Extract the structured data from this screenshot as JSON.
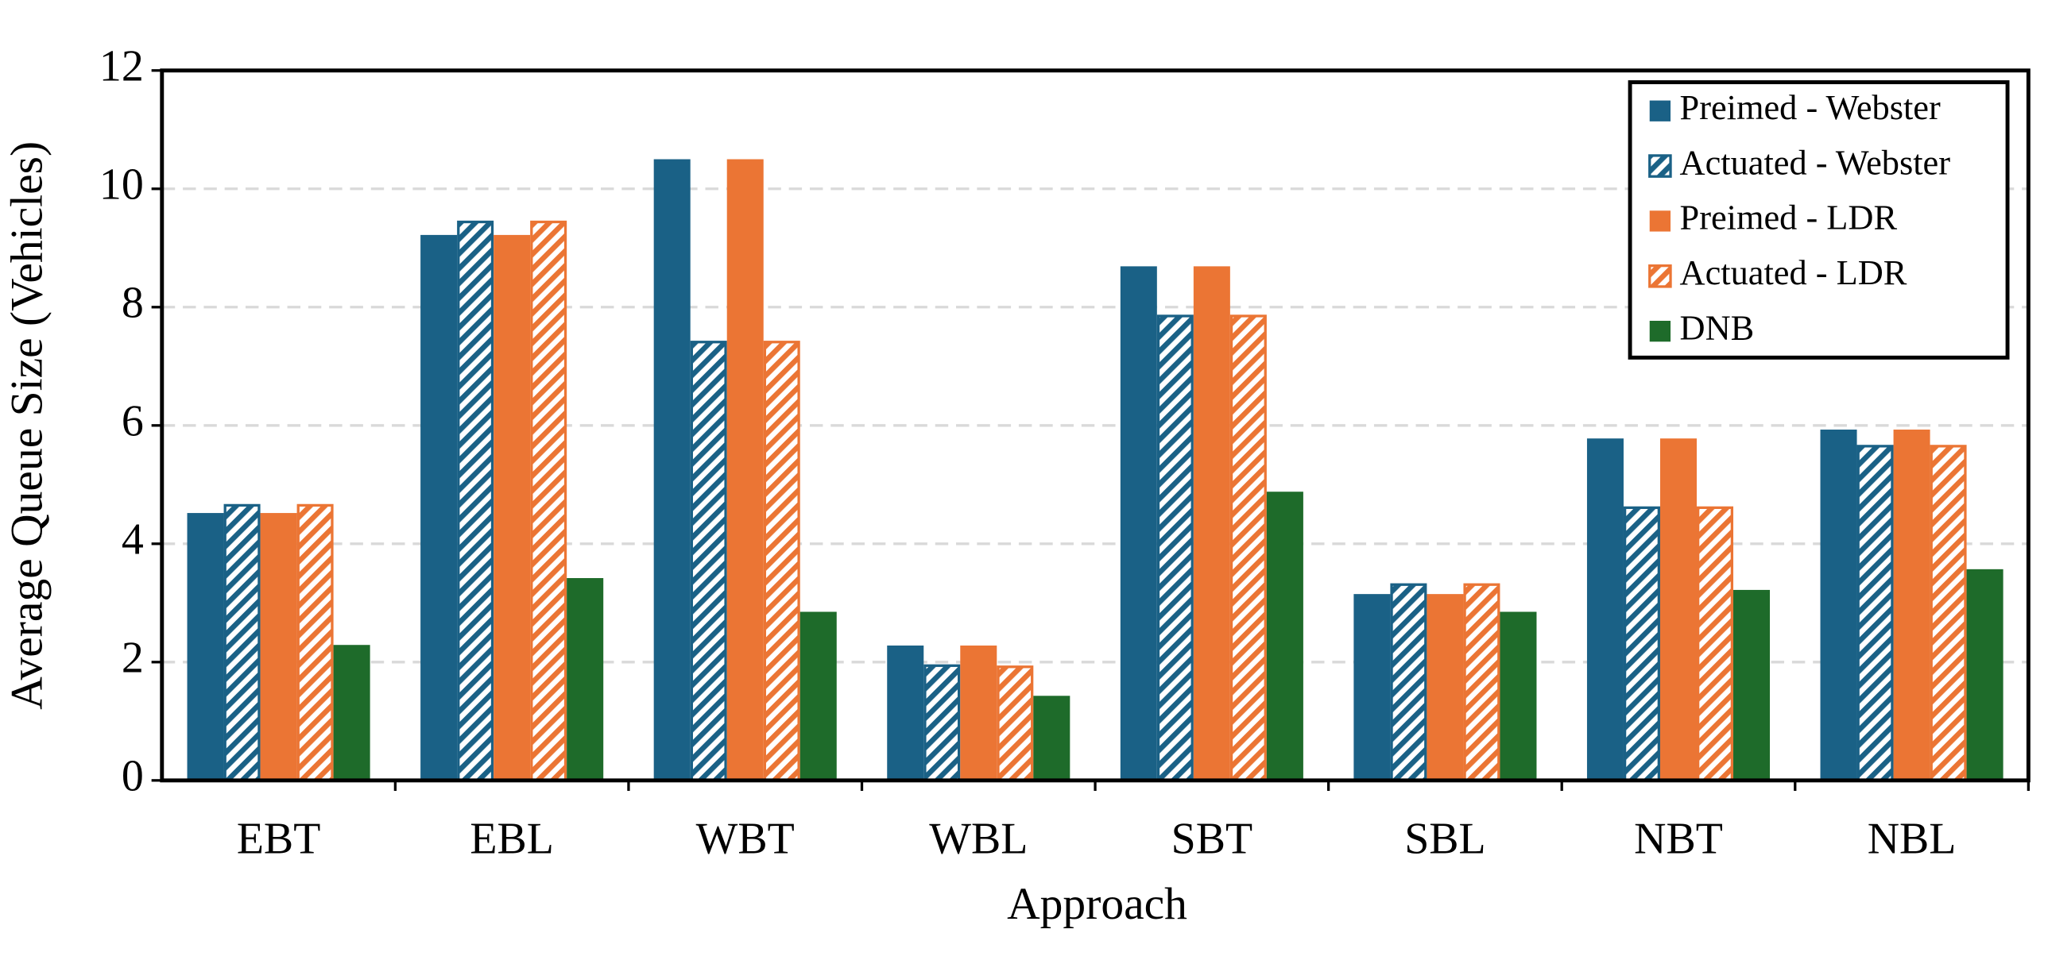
{
  "chart_data": {
    "type": "bar",
    "x_label": "Approach",
    "y_label": "Average Queue Size (Vehicles)",
    "categories": [
      "EBT",
      "EBL",
      "WBT",
      "WBL",
      "SBT",
      "SBL",
      "NBT",
      "NBL"
    ],
    "series": [
      {
        "name": "Preimed - Webster",
        "color": "#1a6186",
        "pattern": "solid",
        "values": [
          4.52,
          9.22,
          10.5,
          2.28,
          8.69,
          3.15,
          5.78,
          5.93
        ]
      },
      {
        "name": "Actuated - Webster",
        "color": "#1a6186",
        "pattern": "hatch",
        "values": [
          4.65,
          9.44,
          7.41,
          1.94,
          7.85,
          3.31,
          4.61,
          5.65
        ]
      },
      {
        "name": "Preimed - LDR",
        "color": "#eb7534",
        "pattern": "solid",
        "values": [
          4.52,
          9.22,
          10.5,
          2.28,
          8.69,
          3.15,
          5.78,
          5.93
        ]
      },
      {
        "name": "Actuated - LDR",
        "color": "#eb7534",
        "pattern": "hatch",
        "values": [
          4.65,
          9.44,
          7.41,
          1.92,
          7.85,
          3.31,
          4.61,
          5.65
        ]
      },
      {
        "name": "DNB",
        "color": "#1e6b2a",
        "pattern": "solid",
        "values": [
          2.29,
          3.42,
          2.85,
          1.43,
          4.88,
          2.85,
          3.22,
          3.57
        ]
      }
    ],
    "ylim": [
      0,
      12
    ],
    "yticks": [
      0,
      2,
      4,
      6,
      8,
      10,
      12
    ],
    "grid": true,
    "legend": "top-right"
  }
}
